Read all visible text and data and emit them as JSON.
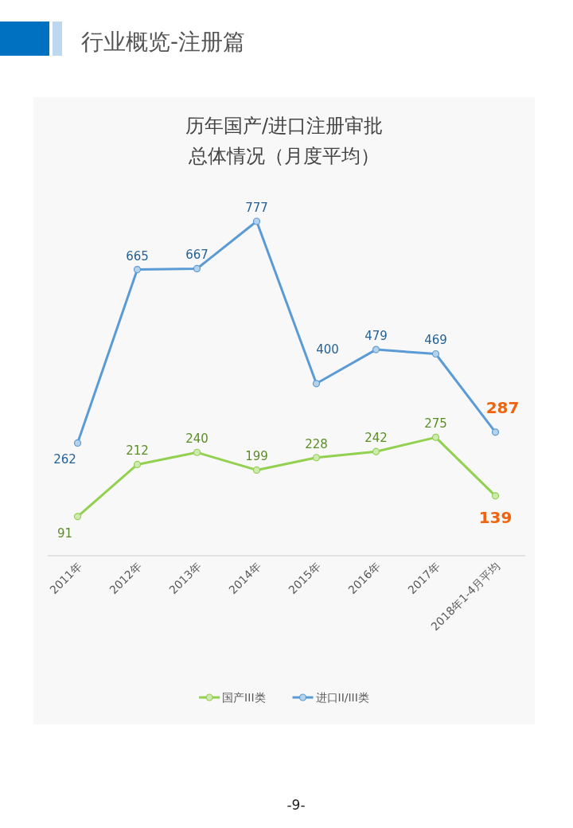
{
  "chart_data": {
    "type": "line",
    "title": "行业概览-注册篇",
    "subtitle": "历年国产/进口注册审批总体情况（月度平均）",
    "categories": [
      "2011年",
      "2012年",
      "2013年",
      "2014年",
      "2015年",
      "2016年",
      "2017年",
      "2018年1-4月平均"
    ],
    "series": [
      {
        "name": "国产III类",
        "color": "#92d050",
        "values": [
          91,
          212,
          240,
          199,
          228,
          242,
          275,
          139
        ],
        "value_labels": [
          "91",
          "212",
          "240",
          "199",
          "228",
          "242",
          "275",
          null
        ]
      },
      {
        "name": "进口II/III类",
        "color": "#5b9bd5",
        "values": [
          262,
          665,
          667,
          777,
          400,
          479,
          469,
          287
        ],
        "value_labels": [
          "262",
          "665",
          "667",
          "777",
          "400",
          "479",
          "469",
          null
        ]
      }
    ],
    "annotations": [
      {
        "text": "287",
        "x": "2018年1-4月平均",
        "y": 287
      },
      {
        "text": "139",
        "x": "2018年1-4月平均",
        "y": 139
      },
      "-9-"
    ],
    "marker": "circle",
    "line_style": "solid",
    "legend": "bottom"
  }
}
